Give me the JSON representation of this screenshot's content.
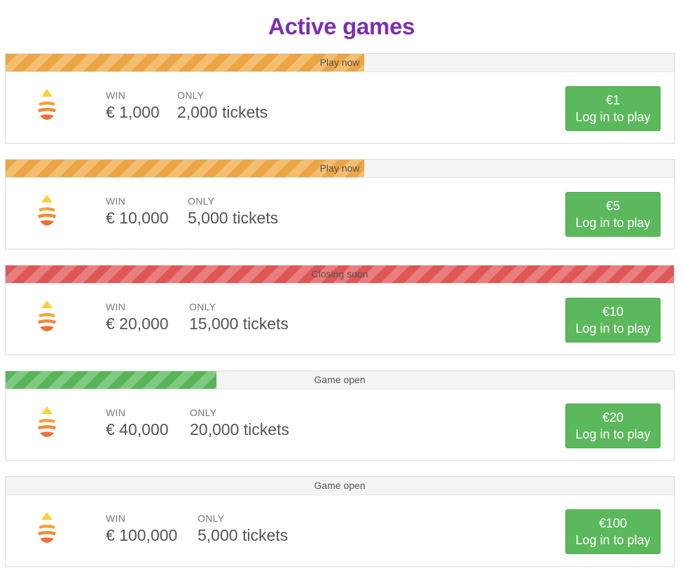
{
  "page": {
    "title": "Active games"
  },
  "colors": {
    "title": "#7b2fb0",
    "button": "#5cb85c",
    "orange": "#eca545",
    "red": "#de5656",
    "green": "#58b458"
  },
  "games": [
    {
      "status": "Play now",
      "status_color": "orange",
      "sold_fraction": 0.537,
      "win_label": "WIN",
      "win_value": "€ 1,000",
      "only_label": "ONLY",
      "tickets": "2,000 tickets",
      "price": "€1",
      "button_label": "Log in to play",
      "icon": "drop-icon"
    },
    {
      "status": "Play now",
      "status_color": "orange",
      "sold_fraction": 0.537,
      "win_label": "WIN",
      "win_value": "€ 10,000",
      "only_label": "ONLY",
      "tickets": "5,000 tickets",
      "price": "€5",
      "button_label": "Log in to play",
      "icon": "drop-icon"
    },
    {
      "status": "Closing soon",
      "status_color": "red",
      "sold_fraction": 1.0,
      "win_label": "WIN",
      "win_value": "€ 20,000",
      "only_label": "ONLY",
      "tickets": "15,000 tickets",
      "price": "€10",
      "button_label": "Log in to play",
      "icon": "drop-icon"
    },
    {
      "status": "Game open",
      "status_color": "green",
      "sold_fraction": 0.316,
      "win_label": "WIN",
      "win_value": "€ 40,000",
      "only_label": "ONLY",
      "tickets": "20,000 tickets",
      "price": "€20",
      "button_label": "Log in to play",
      "icon": "drop-icon"
    },
    {
      "status": "Game open",
      "status_color": "green",
      "sold_fraction": 0.0,
      "win_label": "WIN",
      "win_value": "€ 100,000",
      "only_label": "ONLY",
      "tickets": "5,000 tickets",
      "price": "€100",
      "button_label": "Log in to play",
      "icon": "drop-icon"
    }
  ]
}
